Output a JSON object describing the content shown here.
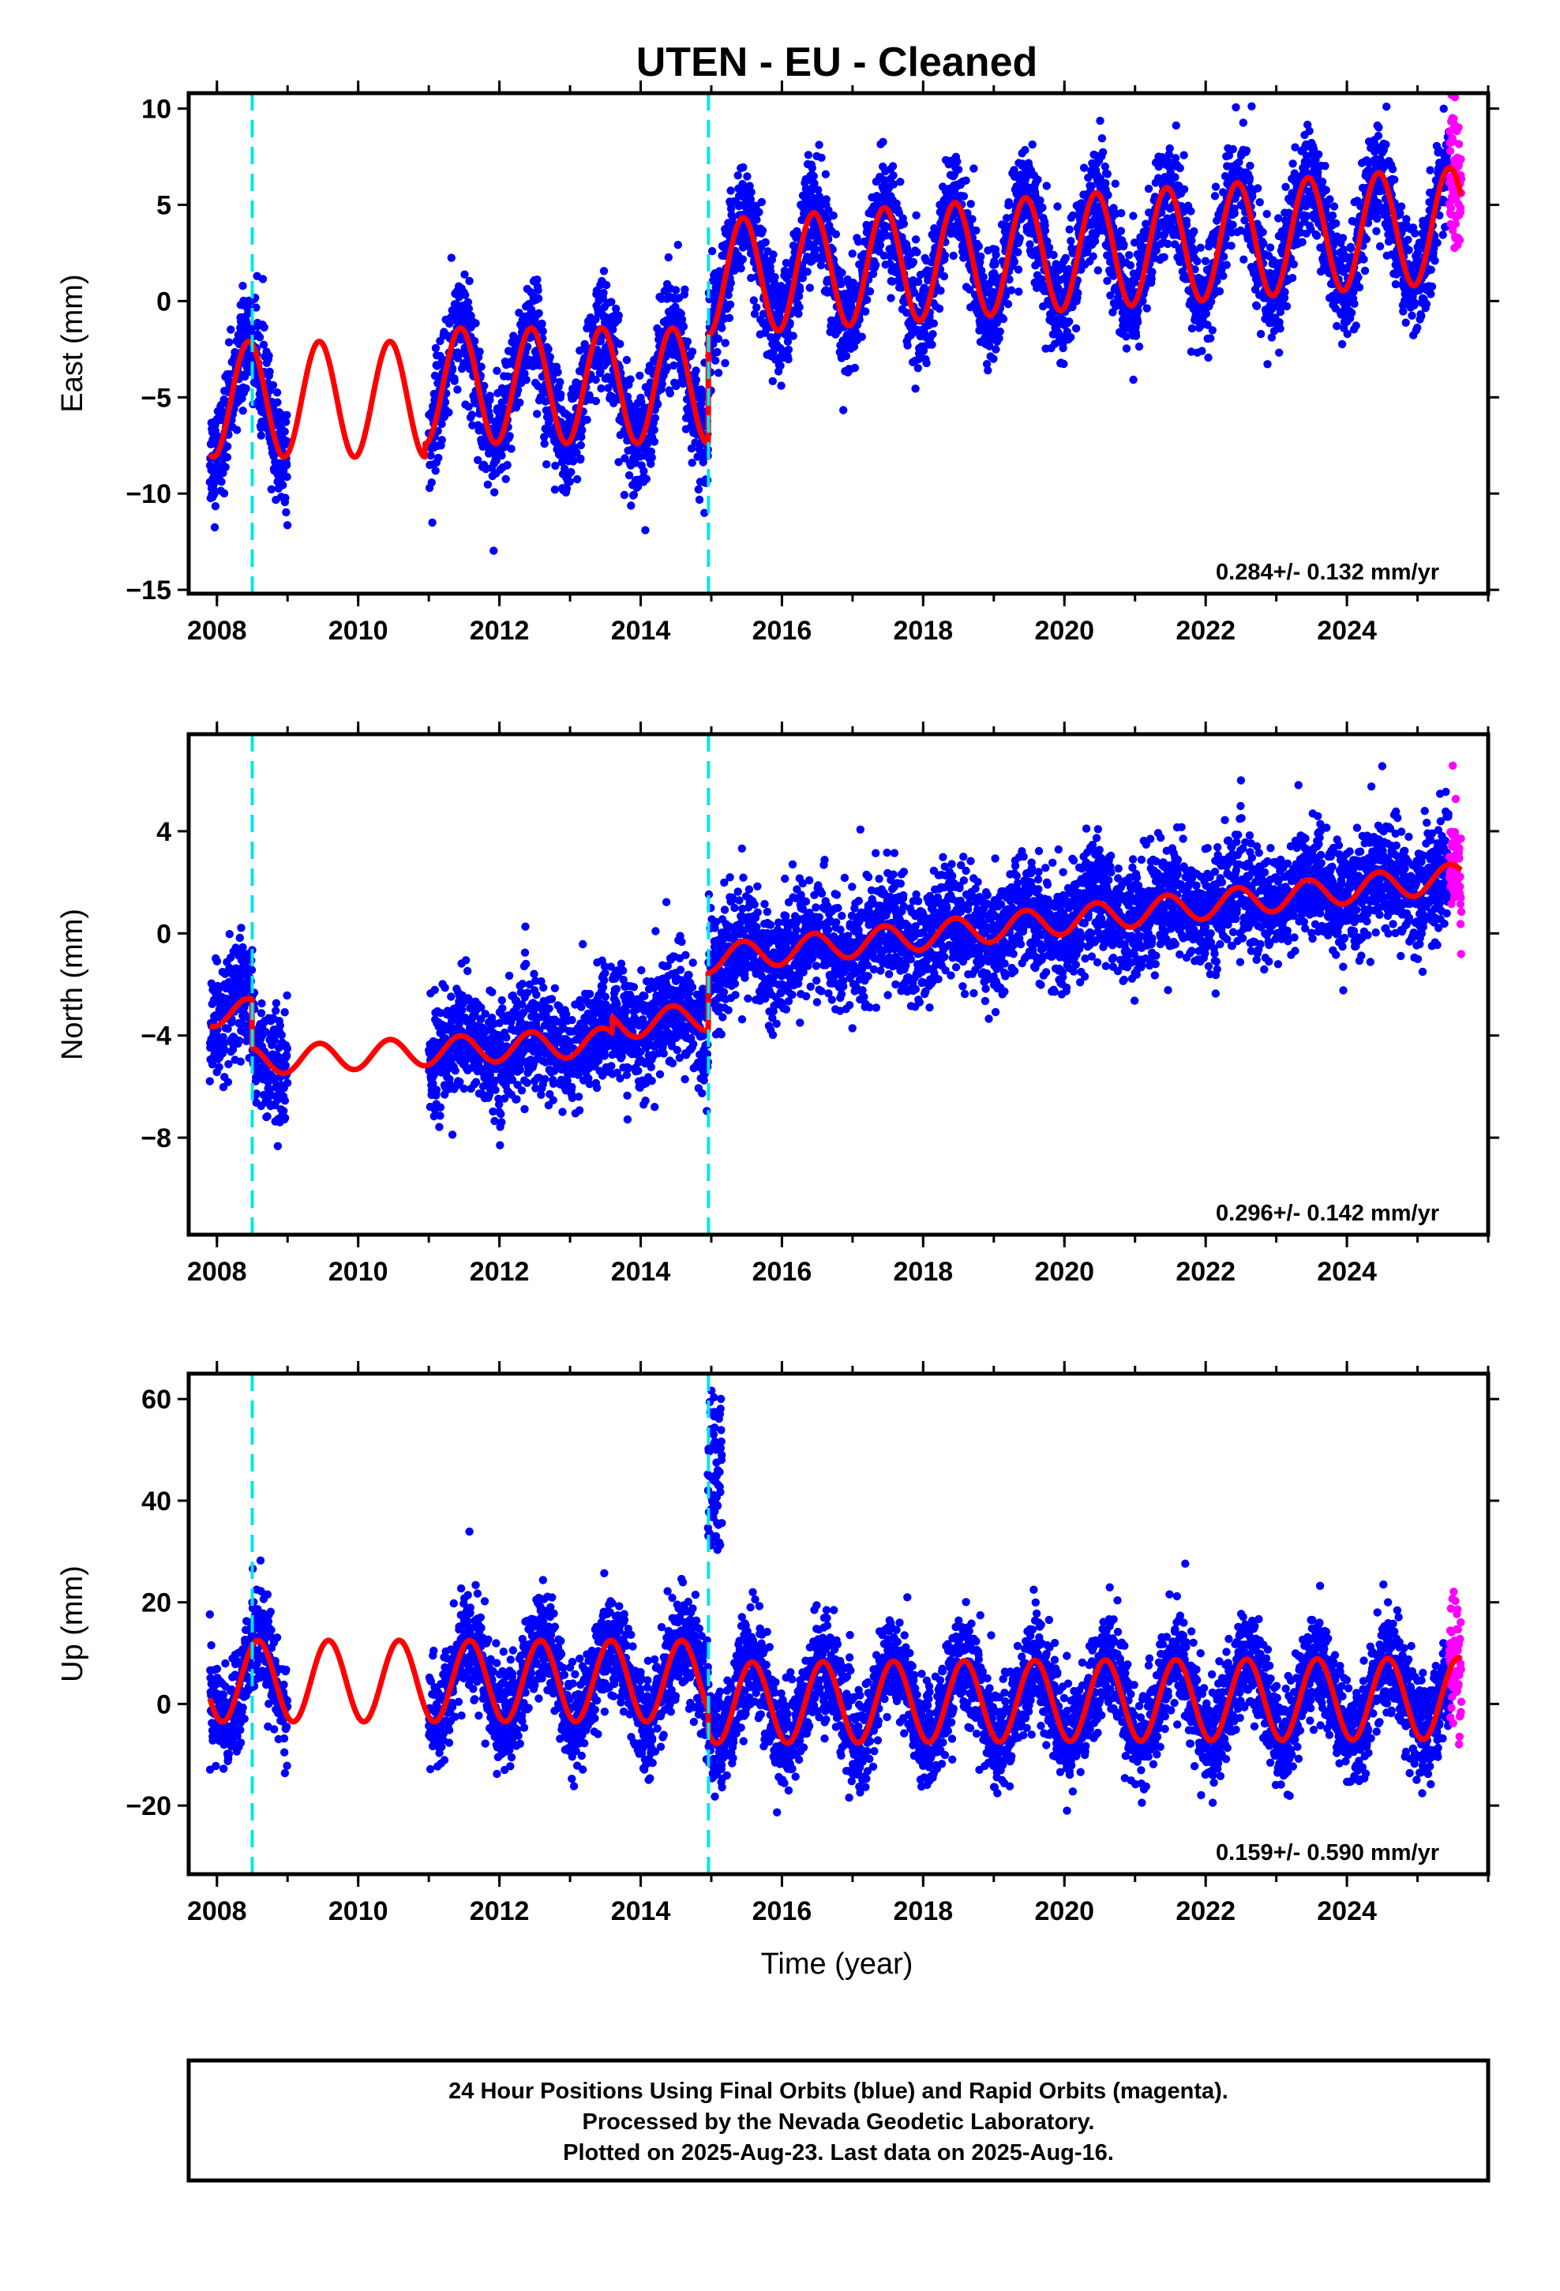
{
  "chart_data": [
    {
      "type": "scatter",
      "title": "UTEN  - EU - Cleaned",
      "ylabel": "East (mm)",
      "xlabel": "",
      "xlim": [
        2007.6,
        2026.0
      ],
      "ylim": [
        -15.2,
        10.8
      ],
      "yticks": [
        10,
        5,
        0,
        -5,
        -10,
        -15
      ],
      "ytick_labels": [
        "10",
        "5",
        "0",
        "−5",
        "−10",
        "−15"
      ],
      "xticks": [
        2008,
        2010,
        2012,
        2014,
        2016,
        2018,
        2020,
        2022,
        2024
      ],
      "xtick_labels": [
        "2008",
        "2010",
        "2012",
        "2014",
        "2016",
        "2018",
        "2020",
        "2022",
        "2024"
      ],
      "equipment_changes": [
        2008.5,
        2014.96
      ],
      "velocity_label": "0.284+/- 0.132 mm/yr",
      "data_spans": [
        [
          2007.9,
          2009.0
        ],
        [
          2011.0,
          2014.96
        ],
        [
          2014.96,
          2025.45
        ]
      ],
      "rapid_span": [
        2025.45,
        2025.62
      ],
      "model": {
        "segments": [
          {
            "start": 2007.9,
            "end": 2010.95,
            "offset": -5.1,
            "rate": 0.0
          },
          {
            "start": 2010.95,
            "end": 2014.96,
            "offset": -4.4,
            "rate": 0.0
          },
          {
            "start": 2014.96,
            "end": 2025.62,
            "offset": 1.2,
            "rate": 0.26
          }
        ],
        "annual_amplitude": 3.0,
        "peak_phase": 0.45,
        "scatter_sigma": 1.4
      },
      "series": [
        {
          "name": "Final Orbits (blue)",
          "color": "#0000ff"
        },
        {
          "name": "Rapid Orbits (magenta)",
          "color": "#ff00ff"
        },
        {
          "color": "#ff0000"
        }
      ]
    },
    {
      "type": "scatter",
      "title": "",
      "ylabel": "North (mm)",
      "xlabel": "",
      "xlim": [
        2007.6,
        2026.0
      ],
      "ylim": [
        -11.8,
        7.8
      ],
      "yticks": [
        4,
        0,
        -4,
        -8
      ],
      "ytick_labels": [
        "4",
        "0",
        "−4",
        "−8"
      ],
      "xticks": [
        2008,
        2010,
        2012,
        2014,
        2016,
        2018,
        2020,
        2022,
        2024
      ],
      "xtick_labels": [
        "2008",
        "2010",
        "2012",
        "2014",
        "2016",
        "2018",
        "2020",
        "2022",
        "2024"
      ],
      "equipment_changes": [
        2008.5,
        2014.96
      ],
      "velocity_label": "0.296+/- 0.142 mm/yr",
      "data_spans": [
        [
          2007.9,
          2009.0
        ],
        [
          2011.0,
          2013.6
        ],
        [
          2013.6,
          2014.96
        ],
        [
          2014.96,
          2025.45
        ]
      ],
      "rapid_span": [
        2025.45,
        2025.62
      ],
      "model": {
        "segments": [
          {
            "start": 2007.9,
            "end": 2008.5,
            "offset": -3.1,
            "rate": 0.0
          },
          {
            "start": 2008.5,
            "end": 2013.6,
            "offset": -5.0,
            "rate": 0.15
          },
          {
            "start": 2013.6,
            "end": 2014.96,
            "offset": -3.6,
            "rate": 0.25
          },
          {
            "start": 2014.96,
            "end": 2025.62,
            "offset": -1.0,
            "rate": 0.3
          }
        ],
        "annual_amplitude": 0.55,
        "peak_phase": 0.45,
        "scatter_sigma": 1.1
      },
      "series": [
        {
          "name": "Final Orbits (blue)",
          "color": "#0000ff"
        },
        {
          "name": "Rapid Orbits (magenta)",
          "color": "#ff00ff"
        },
        {
          "color": "#ff0000"
        }
      ]
    },
    {
      "type": "scatter",
      "title": "",
      "ylabel": "Up (mm)",
      "xlabel": "Time (year)",
      "xlim": [
        2007.6,
        2026.0
      ],
      "ylim": [
        -33.5,
        65.0
      ],
      "yticks": [
        60,
        40,
        20,
        0,
        -20
      ],
      "ytick_labels": [
        "60",
        "40",
        "20",
        "0",
        "−20"
      ],
      "xticks": [
        2008,
        2010,
        2012,
        2014,
        2016,
        2018,
        2020,
        2022,
        2024
      ],
      "xtick_labels": [
        "2008",
        "2010",
        "2012",
        "2014",
        "2016",
        "2018",
        "2020",
        "2022",
        "2024"
      ],
      "equipment_changes": [
        2008.5,
        2014.96
      ],
      "velocity_label": "0.159+/- 0.590 mm/yr",
      "data_spans": [
        [
          2007.9,
          2009.0
        ],
        [
          2011.0,
          2014.96
        ],
        [
          2014.96,
          2025.45
        ]
      ],
      "rapid_span": [
        2025.45,
        2025.62
      ],
      "outlier_cluster": {
        "start": 2014.95,
        "end": 2015.15,
        "min": 30,
        "max": 62
      },
      "model": {
        "segments": [
          {
            "start": 2007.9,
            "end": 2014.96,
            "offset": 4.5,
            "rate": 0.0
          },
          {
            "start": 2014.96,
            "end": 2025.62,
            "offset": 0.2,
            "rate": 0.08
          }
        ],
        "annual_amplitude": 8.0,
        "peak_phase": 0.58,
        "scatter_sigma": 5.0
      },
      "series": [
        {
          "name": "Final Orbits (blue)",
          "color": "#0000ff"
        },
        {
          "name": "Rapid Orbits (magenta)",
          "color": "#ff00ff"
        },
        {
          "color": "#ff0000"
        }
      ]
    }
  ],
  "footer": {
    "line1": "24 Hour Positions Using Final Orbits (blue) and Rapid Orbits (magenta).",
    "line2": "Processed by the Nevada Geodetic Laboratory.",
    "line3": "Plotted on 2025-Aug-23. Last data on 2025-Aug-16."
  },
  "colors": {
    "final_points": "#0000ff",
    "rapid_points": "#ff00ff",
    "model_line": "#ff0000",
    "equipment_change_line": "#00e5ee",
    "frame": "#000000"
  }
}
